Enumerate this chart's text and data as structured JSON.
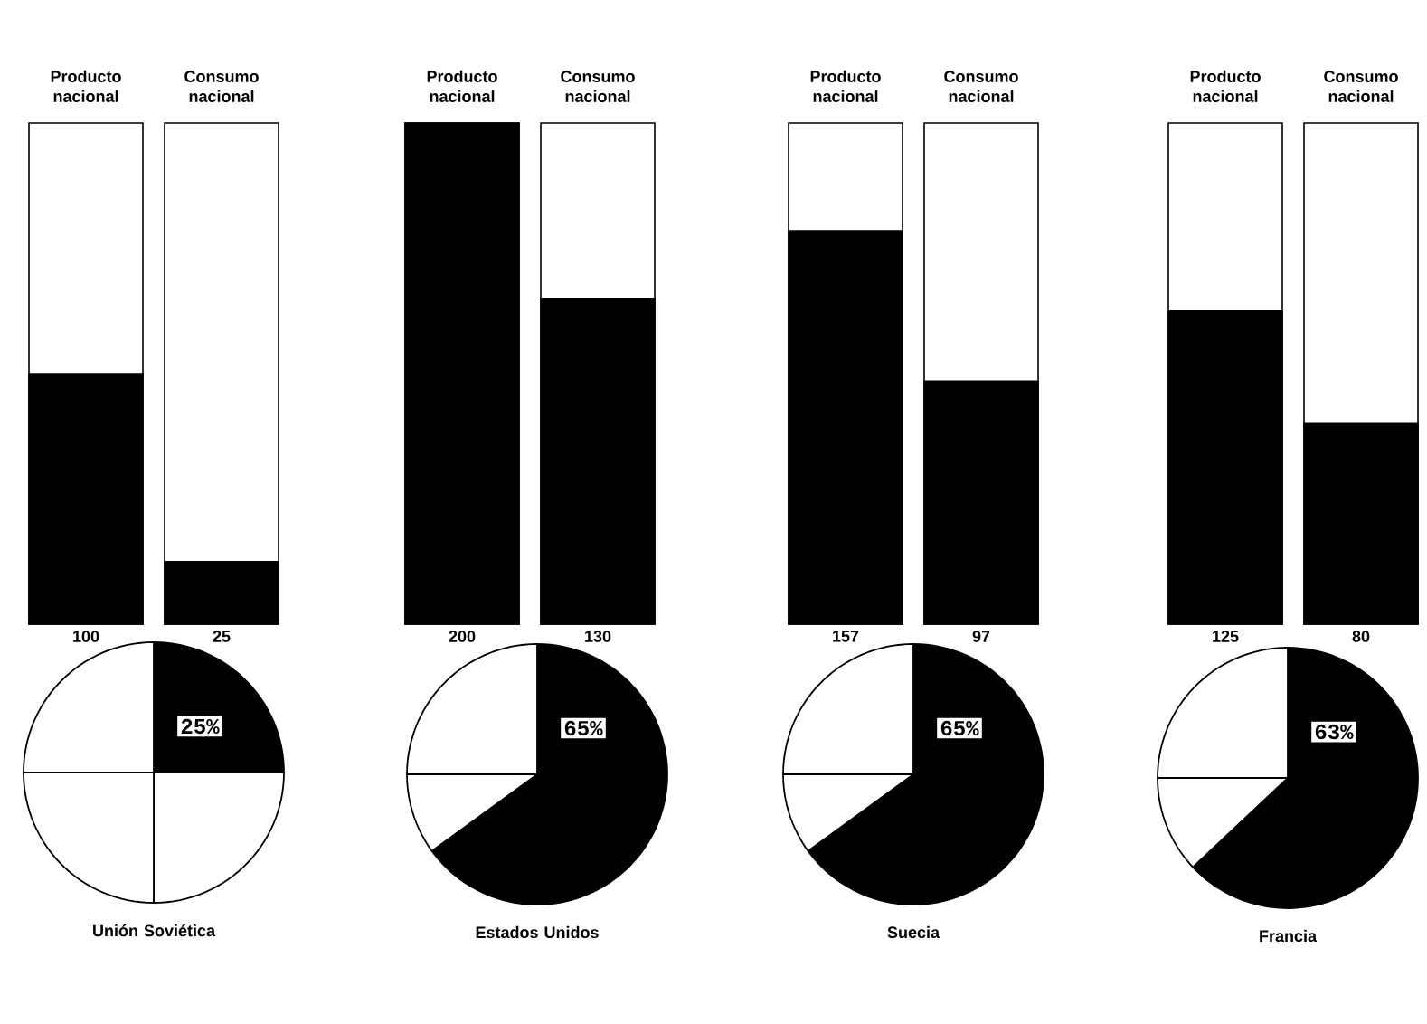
{
  "chart_data": [
    {
      "type": "bar",
      "categories": [
        "Producto nacional",
        "Consumo nacional"
      ],
      "values": [
        100,
        25
      ],
      "color": "#000000",
      "ylim": [
        0,
        200
      ],
      "data_labels": true
    },
    {
      "type": "pie",
      "title": "Unión Soviética",
      "categories": [
        null,
        null,
        null,
        null
      ],
      "values": [
        25,
        25,
        25,
        25
      ],
      "colors": [
        "#000000",
        "#ffffff",
        "#ffffff",
        "#ffffff"
      ],
      "value_labels": [
        "25%",
        null,
        null,
        null
      ]
    },
    {
      "type": "bar",
      "categories": [
        "Producto nacional",
        "Consumo nacional"
      ],
      "values": [
        200,
        130
      ],
      "color": "#000000",
      "ylim": [
        0,
        200
      ],
      "data_labels": true
    },
    {
      "type": "pie",
      "title": "Estados Unidos",
      "categories": [
        null,
        null,
        null
      ],
      "values": [
        65,
        10,
        25
      ],
      "colors": [
        "#000000",
        "#ffffff",
        "#ffffff"
      ],
      "value_labels": [
        "65%",
        null,
        null
      ]
    },
    {
      "type": "bar",
      "categories": [
        "Producto nacional",
        "Consumo nacional"
      ],
      "values": [
        157,
        97
      ],
      "color": "#000000",
      "ylim": [
        0,
        200
      ],
      "data_labels": true
    },
    {
      "type": "pie",
      "title": "Suecia",
      "categories": [
        null,
        null,
        null
      ],
      "values": [
        65,
        10,
        25
      ],
      "colors": [
        "#000000",
        "#ffffff",
        "#ffffff"
      ],
      "value_labels": [
        "65%",
        null,
        null
      ]
    },
    {
      "type": "bar",
      "categories": [
        "Producto nacional",
        "Consumo nacional"
      ],
      "values": [
        125,
        80
      ],
      "color": "#000000",
      "ylim": [
        0,
        200
      ],
      "data_labels": true
    },
    {
      "type": "pie",
      "title": "Francia",
      "categories": [
        null,
        null,
        null
      ],
      "values": [
        63,
        12,
        25
      ],
      "colors": [
        "#000000",
        "#ffffff",
        "#ffffff"
      ],
      "value_labels": [
        "63%",
        null,
        null
      ]
    }
  ]
}
